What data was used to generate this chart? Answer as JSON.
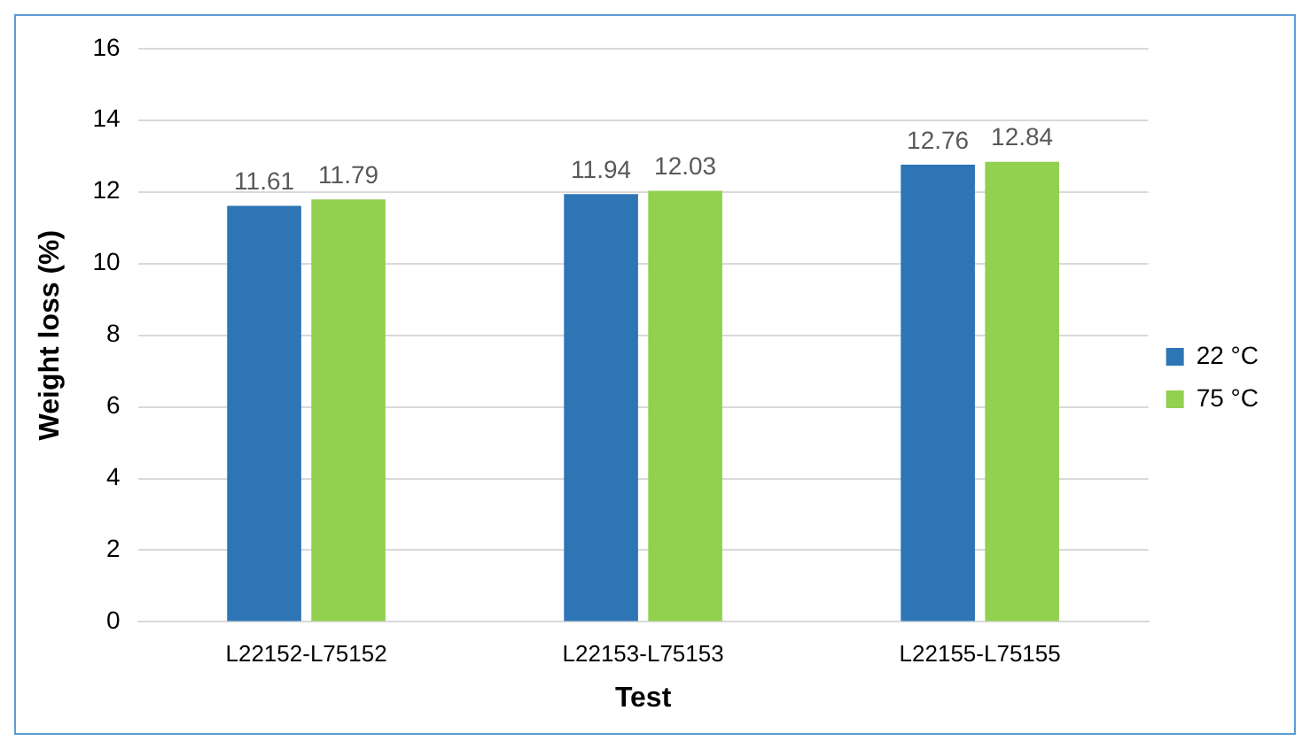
{
  "chart_data": {
    "type": "bar",
    "xlabel": "Test",
    "ylabel": "Weight loss (%)",
    "categories": [
      "L22152-L75152",
      "L22153-L75153",
      "L22155-L75155"
    ],
    "series": [
      {
        "name": "22 °C",
        "color": "#2e75b6",
        "values": [
          11.61,
          11.94,
          12.76
        ]
      },
      {
        "name": "75 °C",
        "color": "#92d050",
        "values": [
          11.79,
          12.03,
          12.84
        ]
      }
    ],
    "ylim": [
      0,
      16
    ],
    "yticks": [
      0,
      2,
      4,
      6,
      8,
      10,
      12,
      14,
      16
    ],
    "grid": "y",
    "legend": "right",
    "data_labels": true
  }
}
